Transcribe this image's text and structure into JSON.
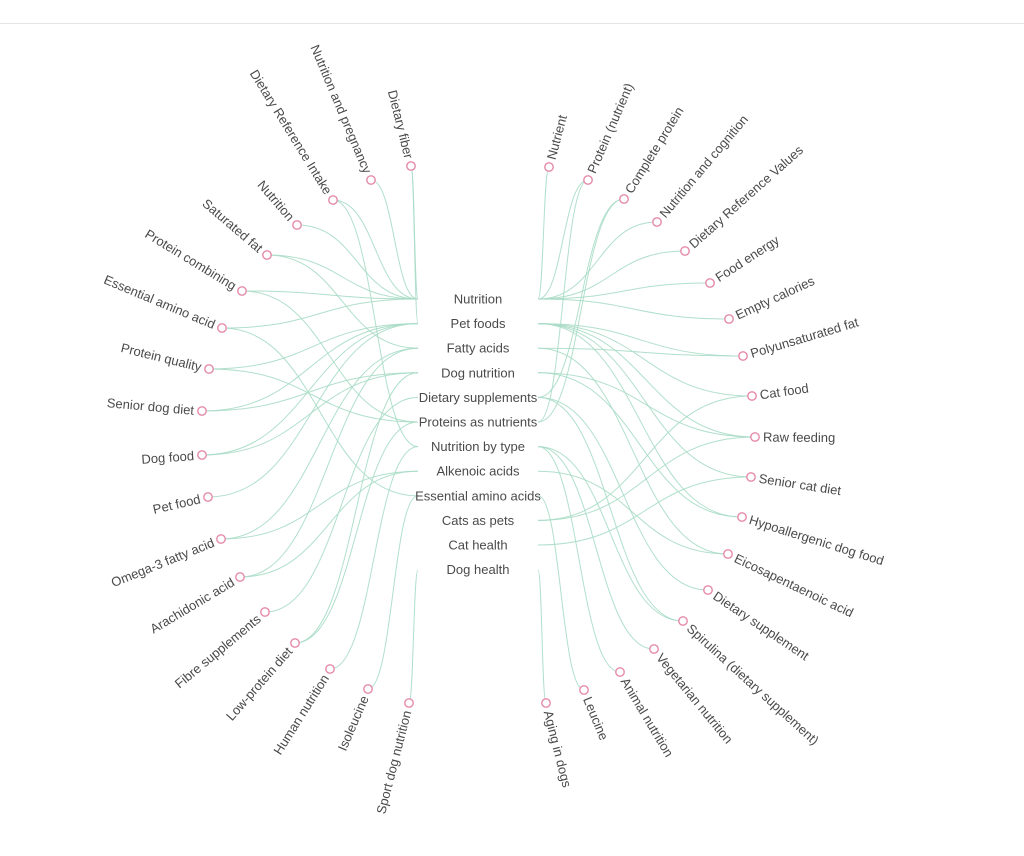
{
  "hubs": [
    "Nutrition",
    "Pet foods",
    "Fatty acids",
    "Dog nutrition",
    "Dietary supplements",
    "Proteins as nutrients",
    "Nutrition by type",
    "Alkenoic acids",
    "Essential amino acids",
    "Cats as pets",
    "Cat health",
    "Dog health"
  ],
  "left_nodes": [
    {
      "label": "Dietary fiber",
      "hubs": [
        0,
        1
      ]
    },
    {
      "label": "Nutrition and pregnancy",
      "hubs": [
        0
      ]
    },
    {
      "label": "Dietary Reference Intake",
      "hubs": [
        0,
        6
      ]
    },
    {
      "label": "Nutrition",
      "hubs": [
        0
      ]
    },
    {
      "label": "Saturated fat",
      "hubs": [
        0,
        2
      ]
    },
    {
      "label": "Protein combining",
      "hubs": [
        0,
        5
      ]
    },
    {
      "label": "Essential amino acid",
      "hubs": [
        0,
        8
      ]
    },
    {
      "label": "Protein quality",
      "hubs": [
        1,
        5
      ]
    },
    {
      "label": "Senior dog diet",
      "hubs": [
        1,
        3
      ]
    },
    {
      "label": "Dog food",
      "hubs": [
        1,
        3
      ]
    },
    {
      "label": "Pet food",
      "hubs": [
        1
      ]
    },
    {
      "label": "Omega-3 fatty acid",
      "hubs": [
        2,
        7
      ]
    },
    {
      "label": "Arachidonic acid",
      "hubs": [
        2,
        7
      ]
    },
    {
      "label": "Fibre supplements",
      "hubs": [
        4
      ]
    },
    {
      "label": "Low-protein diet",
      "hubs": [
        3,
        5
      ]
    },
    {
      "label": "Human nutrition",
      "hubs": [
        6
      ]
    },
    {
      "label": "Isoleucine",
      "hubs": [
        8
      ]
    },
    {
      "label": "Sport dog nutrition",
      "hubs": [
        11
      ]
    }
  ],
  "right_nodes": [
    {
      "label": "Nutrient",
      "hubs": [
        0
      ]
    },
    {
      "label": "Protein (nutrient)",
      "hubs": [
        0,
        5
      ]
    },
    {
      "label": "Complete protein",
      "hubs": [
        4,
        5
      ]
    },
    {
      "label": "Nutrition and cognition",
      "hubs": [
        0
      ]
    },
    {
      "label": "Dietary Reference Values",
      "hubs": [
        0
      ]
    },
    {
      "label": "Food energy",
      "hubs": [
        0
      ]
    },
    {
      "label": "Empty calories",
      "hubs": [
        0
      ]
    },
    {
      "label": "Polyunsaturated fat",
      "hubs": [
        1,
        2
      ]
    },
    {
      "label": "Cat food",
      "hubs": [
        1,
        9
      ]
    },
    {
      "label": "Raw feeding",
      "hubs": [
        1,
        3,
        9
      ]
    },
    {
      "label": "Senior cat diet",
      "hubs": [
        1,
        10
      ]
    },
    {
      "label": "Hypoallergenic dog food",
      "hubs": [
        1,
        3
      ]
    },
    {
      "label": "Eicosapentaenoic acid",
      "hubs": [
        2,
        7
      ]
    },
    {
      "label": "Dietary supplement",
      "hubs": [
        4
      ]
    },
    {
      "label": "Spirulina (dietary supplement)",
      "hubs": [
        4,
        6
      ]
    },
    {
      "label": "Vegetarian nutrition",
      "hubs": [
        6
      ]
    },
    {
      "label": "Animal nutrition",
      "hubs": [
        6
      ]
    },
    {
      "label": "Leucine",
      "hubs": [
        8
      ]
    },
    {
      "label": "Aging in dogs",
      "hubs": [
        11
      ]
    }
  ],
  "colors": {
    "edge": "#a9dcc6",
    "node_stroke": "#e58aa9",
    "text": "#4a4a4a"
  }
}
